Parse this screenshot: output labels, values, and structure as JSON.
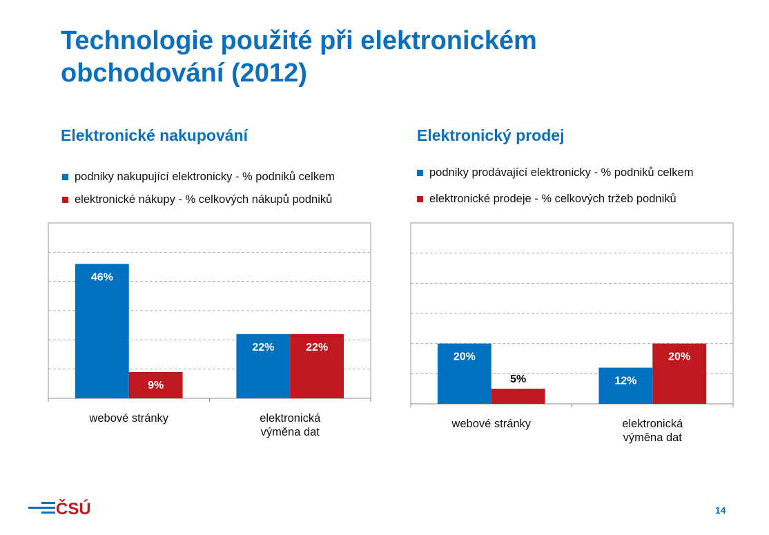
{
  "title_line1": "Technologie použité při elektronickém",
  "title_line2": "obchodování (2012)",
  "page_number": "14",
  "logo": {
    "text": "ČSÚ",
    "colors": {
      "stripes": "#0a6fbd",
      "text": "#c0181f"
    }
  },
  "colors": {
    "blue": "#0070c0",
    "red": "#c0181f",
    "title": "#0a6fbd"
  },
  "chart_data": [
    {
      "type": "bar",
      "title": "Elektronické nakupování",
      "categories": [
        "webové stránky",
        "elektronická výměna dat"
      ],
      "series": [
        {
          "name": "podniky nakupující elektronicky - % podniků celkem",
          "values": [
            46,
            22
          ],
          "labels": [
            "46%",
            "22%"
          ],
          "color": "#0070c0"
        },
        {
          "name": "elektronické nákupy - % celkových nákupů podniků",
          "values": [
            9,
            22
          ],
          "labels": [
            "9%",
            "22%"
          ],
          "color": "#c0181f"
        }
      ],
      "ylim": [
        0,
        60
      ],
      "grid": true,
      "legend": "top"
    },
    {
      "type": "bar",
      "title": "Elektronický prodej",
      "categories": [
        "webové stránky",
        "elektronická výměna dat"
      ],
      "series": [
        {
          "name": "podniky prodávající elektronicky - % podniků celkem",
          "values": [
            20,
            12
          ],
          "labels": [
            "20%",
            "12%"
          ],
          "color": "#0070c0"
        },
        {
          "name": "elektronické prodeje - % celkových tržeb podniků",
          "values": [
            5,
            20
          ],
          "labels": [
            "5%",
            "20%"
          ],
          "color": "#c0181f"
        }
      ],
      "ylim": [
        0,
        60
      ],
      "grid": true,
      "legend": "top"
    }
  ]
}
